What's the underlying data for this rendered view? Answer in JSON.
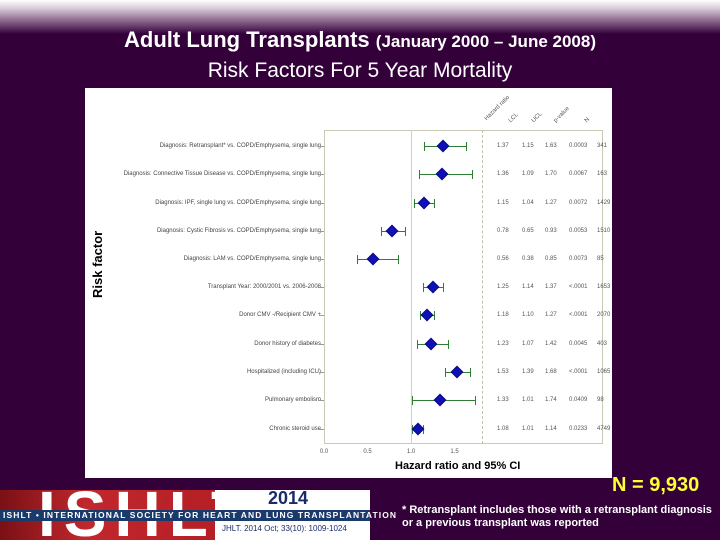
{
  "header": {
    "title_main": "Adult Lung Transplants",
    "title_period": "(January 2000 – June 2008)",
    "subtitle": "Risk Factors For 5 Year Mortality"
  },
  "chart_data": {
    "type": "forest",
    "title": "Risk Factors For 5 Year Mortality",
    "xlabel": "Hazard ratio and 95% CI",
    "ylabel": "Risk factor",
    "x_ticks": [
      "0.0",
      "0.5",
      "1.0",
      "1.5"
    ],
    "xlim": [
      0.0,
      1.8
    ],
    "reference_line": 1.0,
    "columns": [
      "Hazard ratio",
      "LCL",
      "UCL",
      "p-value",
      "N"
    ],
    "rows": [
      {
        "label": "Diagnosis: Retransplant* vs. COPD/Emphysema, single lung",
        "hr": "1.37",
        "lcl": "1.15",
        "ucl": "1.63",
        "p": "0.0003",
        "n": "341"
      },
      {
        "label": "Diagnosis: Connective Tissue Disease vs. COPD/Emphysema, single lung",
        "hr": "1.36",
        "lcl": "1.09",
        "ucl": "1.70",
        "p": "0.0067",
        "n": "163"
      },
      {
        "label": "Diagnosis: IPF, single lung vs. COPD/Emphysema, single lung",
        "hr": "1.15",
        "lcl": "1.04",
        "ucl": "1.27",
        "p": "0.0072",
        "n": "1429"
      },
      {
        "label": "Diagnosis: Cystic Fibrosis vs. COPD/Emphysema, single lung",
        "hr": "0.78",
        "lcl": "0.65",
        "ucl": "0.93",
        "p": "0.0053",
        "n": "1510"
      },
      {
        "label": "Diagnosis: LAM vs. COPD/Emphysema, single lung",
        "hr": "0.56",
        "lcl": "0.38",
        "ucl": "0.85",
        "p": "0.0073",
        "n": "85"
      },
      {
        "label": "Transplant Year: 2000/2001 vs. 2006-2008",
        "hr": "1.25",
        "lcl": "1.14",
        "ucl": "1.37",
        "p": "<.0001",
        "n": "1653"
      },
      {
        "label": "Donor CMV -/Recipient CMV +",
        "hr": "1.18",
        "lcl": "1.10",
        "ucl": "1.27",
        "p": "<.0001",
        "n": "2070"
      },
      {
        "label": "Donor history of diabetes",
        "hr": "1.23",
        "lcl": "1.07",
        "ucl": "1.42",
        "p": "0.0045",
        "n": "403"
      },
      {
        "label": "Hospitalized (including ICU)",
        "hr": "1.53",
        "lcl": "1.39",
        "ucl": "1.68",
        "p": "<.0001",
        "n": "1065"
      },
      {
        "label": "Pulmonary embolism",
        "hr": "1.33",
        "lcl": "1.01",
        "ucl": "1.74",
        "p": "0.0409",
        "n": "98"
      },
      {
        "label": "Chronic steroid use",
        "hr": "1.08",
        "lcl": "1.01",
        "ucl": "1.14",
        "p": "0.0233",
        "n": "4749"
      }
    ]
  },
  "footer": {
    "logo_text": "ISHLT",
    "logo_band": "ISHLT • INTERNATIONAL SOCIETY FOR HEART AND LUNG TRANSPLANTATION",
    "year": "2014",
    "citation": "JHLT. 2014 Oct; 33(10): 1009-1024",
    "n_value": "N = 9,930",
    "footnote": "* Retransplant includes those with a retransplant diagnosis or a previous transplant was reported"
  },
  "colors": {
    "background": "#33003a",
    "point": "#1010b8",
    "ci": "#2e7d32",
    "n_value": "#ffff33"
  }
}
